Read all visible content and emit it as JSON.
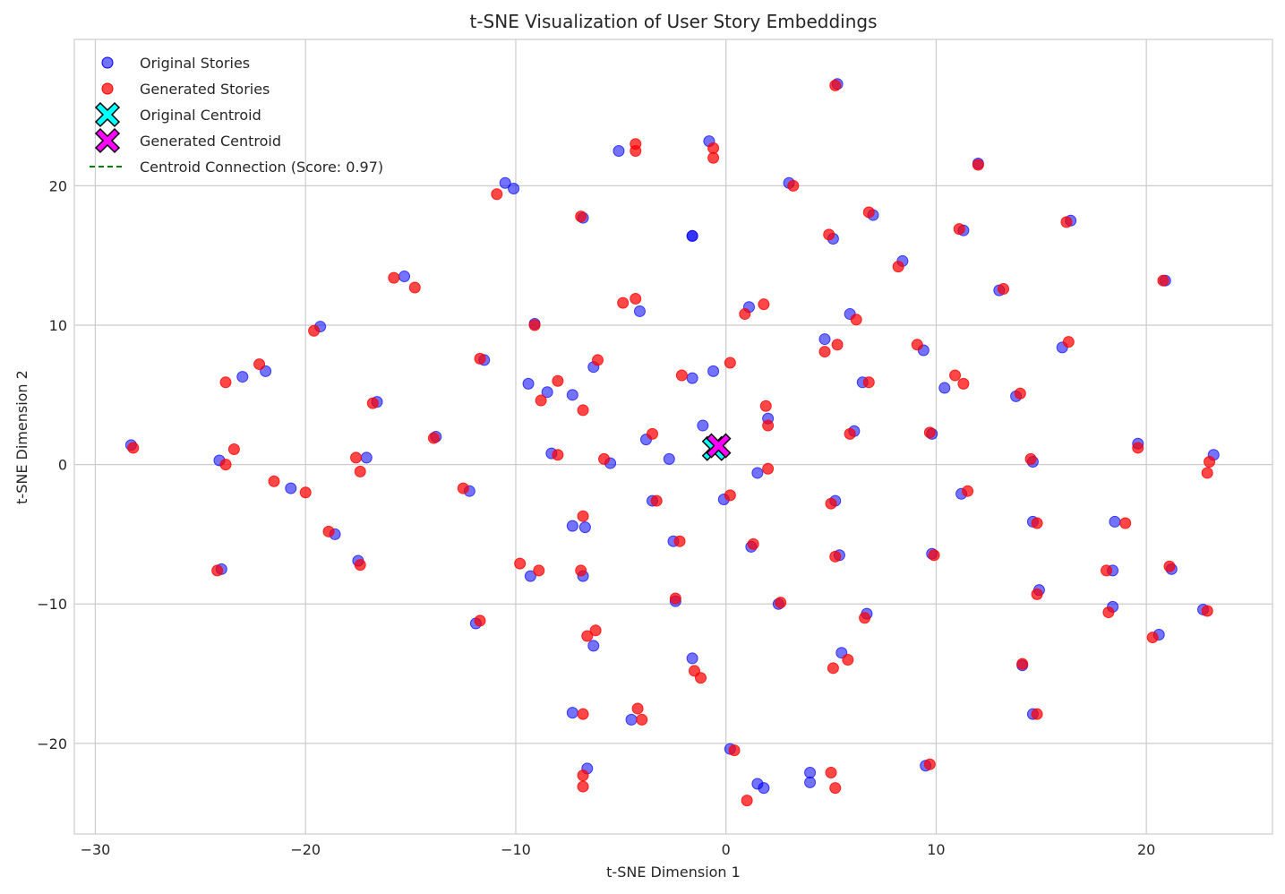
{
  "chart_data": {
    "type": "scatter",
    "title": "t-SNE Visualization of User Story Embeddings",
    "xlabel": "t-SNE Dimension 1",
    "ylabel": "t-SNE Dimension 2",
    "xlim": [
      -31,
      26
    ],
    "ylim": [
      -26.5,
      30.5
    ],
    "xticks": [
      -30,
      -20,
      -10,
      0,
      10,
      20
    ],
    "yticks": [
      -20,
      -10,
      0,
      10,
      20
    ],
    "xtick_labels": [
      "−30",
      "−20",
      "−10",
      "0",
      "10",
      "20"
    ],
    "ytick_labels": [
      "−20",
      "−10",
      "0",
      "10",
      "20"
    ],
    "grid": true,
    "legend_position": "upper-left",
    "colors": {
      "original": "#0000ff",
      "generated": "#ff0000",
      "original_centroid": "#00ffff",
      "generated_centroid": "#ff00ff",
      "connection": "#008000"
    },
    "series": [
      {
        "name": "Original Stories",
        "marker": "circle",
        "points": [
          [
            -28.3,
            1.4
          ],
          [
            -24.1,
            0.3
          ],
          [
            -24.0,
            -7.5
          ],
          [
            -23.0,
            6.3
          ],
          [
            -21.9,
            6.7
          ],
          [
            -20.7,
            -1.7
          ],
          [
            -19.3,
            9.9
          ],
          [
            -18.6,
            -5.0
          ],
          [
            -17.5,
            -6.9
          ],
          [
            -17.1,
            0.5
          ],
          [
            -16.6,
            4.5
          ],
          [
            -15.3,
            13.5
          ],
          [
            -13.8,
            2.0
          ],
          [
            -12.2,
            -1.9
          ],
          [
            -11.9,
            -11.4
          ],
          [
            -11.5,
            7.5
          ],
          [
            -10.5,
            20.2
          ],
          [
            -10.1,
            19.8
          ],
          [
            -9.4,
            5.8
          ],
          [
            -9.3,
            -8.0
          ],
          [
            -9.1,
            10.1
          ],
          [
            -8.5,
            5.2
          ],
          [
            -8.3,
            0.8
          ],
          [
            -7.3,
            5.0
          ],
          [
            -7.3,
            -4.4
          ],
          [
            -7.3,
            -17.8
          ],
          [
            -6.8,
            17.7
          ],
          [
            -6.8,
            -8.0
          ],
          [
            -6.7,
            -4.5
          ],
          [
            -6.6,
            -21.8
          ],
          [
            -6.3,
            7.0
          ],
          [
            -6.3,
            -13.0
          ],
          [
            -5.5,
            0.1
          ],
          [
            -5.1,
            22.5
          ],
          [
            -4.5,
            -18.3
          ],
          [
            -4.1,
            11.0
          ],
          [
            -3.8,
            1.8
          ],
          [
            -3.5,
            -2.6
          ],
          [
            -2.7,
            0.4
          ],
          [
            -2.5,
            -5.5
          ],
          [
            -2.4,
            -9.8
          ],
          [
            -1.6,
            16.4
          ],
          [
            -1.6,
            16.4
          ],
          [
            -1.6,
            6.2
          ],
          [
            -1.6,
            -13.9
          ],
          [
            -1.1,
            2.8
          ],
          [
            -0.8,
            23.2
          ],
          [
            -0.6,
            6.7
          ],
          [
            -0.1,
            -2.5
          ],
          [
            0.2,
            -20.4
          ],
          [
            1.1,
            11.3
          ],
          [
            1.2,
            -5.9
          ],
          [
            1.5,
            -0.6
          ],
          [
            1.5,
            -22.9
          ],
          [
            1.8,
            -23.2
          ],
          [
            2.0,
            3.3
          ],
          [
            2.5,
            -10.0
          ],
          [
            3.0,
            20.2
          ],
          [
            4.0,
            -22.1
          ],
          [
            4.0,
            -22.8
          ],
          [
            4.7,
            9.0
          ],
          [
            5.1,
            16.2
          ],
          [
            5.2,
            -2.6
          ],
          [
            5.3,
            27.3
          ],
          [
            5.4,
            -6.5
          ],
          [
            5.5,
            -13.5
          ],
          [
            5.9,
            10.8
          ],
          [
            6.1,
            2.4
          ],
          [
            6.5,
            5.9
          ],
          [
            6.7,
            -10.7
          ],
          [
            7.0,
            17.9
          ],
          [
            8.4,
            14.6
          ],
          [
            9.4,
            8.2
          ],
          [
            9.5,
            -21.6
          ],
          [
            9.8,
            2.2
          ],
          [
            9.8,
            -6.4
          ],
          [
            10.4,
            5.5
          ],
          [
            11.2,
            -2.1
          ],
          [
            11.3,
            16.8
          ],
          [
            12.0,
            21.6
          ],
          [
            13.0,
            12.5
          ],
          [
            13.8,
            4.9
          ],
          [
            14.1,
            -14.4
          ],
          [
            14.6,
            0.2
          ],
          [
            14.6,
            -4.1
          ],
          [
            14.6,
            -17.9
          ],
          [
            14.9,
            -9.0
          ],
          [
            16.0,
            8.4
          ],
          [
            16.4,
            17.5
          ],
          [
            18.4,
            -7.6
          ],
          [
            18.4,
            -10.2
          ],
          [
            18.5,
            -4.1
          ],
          [
            19.6,
            1.5
          ],
          [
            20.6,
            -12.2
          ],
          [
            20.9,
            13.2
          ],
          [
            21.2,
            -7.5
          ],
          [
            22.7,
            -10.4
          ],
          [
            23.2,
            0.7
          ]
        ]
      },
      {
        "name": "Generated Stories",
        "marker": "circle",
        "points": [
          [
            -28.2,
            1.2
          ],
          [
            -24.2,
            -7.6
          ],
          [
            -23.8,
            5.9
          ],
          [
            -23.8,
            0.0
          ],
          [
            -23.4,
            1.1
          ],
          [
            -22.2,
            7.2
          ],
          [
            -21.5,
            -1.2
          ],
          [
            -20.0,
            -2.0
          ],
          [
            -19.6,
            9.6
          ],
          [
            -18.9,
            -4.8
          ],
          [
            -17.6,
            0.5
          ],
          [
            -17.4,
            -7.2
          ],
          [
            -17.4,
            -0.5
          ],
          [
            -16.8,
            4.4
          ],
          [
            -15.8,
            13.4
          ],
          [
            -14.8,
            12.7
          ],
          [
            -13.9,
            1.9
          ],
          [
            -12.5,
            -1.7
          ],
          [
            -11.7,
            -11.2
          ],
          [
            -11.7,
            7.6
          ],
          [
            -10.9,
            19.4
          ],
          [
            -9.8,
            -7.1
          ],
          [
            -9.1,
            10.0
          ],
          [
            -8.9,
            -7.6
          ],
          [
            -8.8,
            4.6
          ],
          [
            -8.0,
            6.0
          ],
          [
            -8.0,
            0.7
          ],
          [
            -6.9,
            -7.6
          ],
          [
            -6.9,
            17.8
          ],
          [
            -6.8,
            -3.7
          ],
          [
            -6.8,
            3.9
          ],
          [
            -6.8,
            -17.9
          ],
          [
            -6.8,
            -22.3
          ],
          [
            -6.8,
            -23.1
          ],
          [
            -6.6,
            -12.3
          ],
          [
            -6.2,
            -11.9
          ],
          [
            -6.1,
            7.5
          ],
          [
            -5.8,
            0.4
          ],
          [
            -4.9,
            11.6
          ],
          [
            -4.3,
            23.0
          ],
          [
            -4.3,
            22.5
          ],
          [
            -4.3,
            11.9
          ],
          [
            -4.2,
            -17.5
          ],
          [
            -4.0,
            -18.3
          ],
          [
            -3.5,
            2.2
          ],
          [
            -3.3,
            -2.6
          ],
          [
            -2.4,
            -9.6
          ],
          [
            -2.2,
            -5.5
          ],
          [
            -2.1,
            6.4
          ],
          [
            -1.5,
            -14.8
          ],
          [
            -1.2,
            -15.3
          ],
          [
            -0.6,
            22.7
          ],
          [
            -0.6,
            22.0
          ],
          [
            0.2,
            7.3
          ],
          [
            0.2,
            -2.2
          ],
          [
            0.4,
            -20.5
          ],
          [
            0.9,
            10.8
          ],
          [
            1.0,
            -24.1
          ],
          [
            1.3,
            -5.7
          ],
          [
            1.8,
            11.5
          ],
          [
            1.9,
            4.2
          ],
          [
            2.0,
            2.8
          ],
          [
            2.0,
            -0.3
          ],
          [
            2.6,
            -9.9
          ],
          [
            3.2,
            20.0
          ],
          [
            4.7,
            8.1
          ],
          [
            4.9,
            16.5
          ],
          [
            5.0,
            -2.8
          ],
          [
            5.0,
            -22.1
          ],
          [
            5.1,
            -14.6
          ],
          [
            5.2,
            -23.2
          ],
          [
            5.2,
            -6.6
          ],
          [
            5.2,
            27.2
          ],
          [
            5.3,
            8.6
          ],
          [
            5.8,
            -14.0
          ],
          [
            5.9,
            2.2
          ],
          [
            6.2,
            10.4
          ],
          [
            6.6,
            -11.0
          ],
          [
            6.8,
            5.9
          ],
          [
            6.8,
            18.1
          ],
          [
            8.2,
            14.2
          ],
          [
            9.1,
            8.6
          ],
          [
            9.7,
            2.3
          ],
          [
            9.7,
            -21.5
          ],
          [
            9.9,
            -6.5
          ],
          [
            10.9,
            6.4
          ],
          [
            11.1,
            16.9
          ],
          [
            11.3,
            5.8
          ],
          [
            11.5,
            -1.9
          ],
          [
            12.0,
            21.5
          ],
          [
            13.2,
            12.6
          ],
          [
            14.0,
            5.1
          ],
          [
            14.1,
            -14.3
          ],
          [
            14.5,
            0.4
          ],
          [
            14.8,
            -4.2
          ],
          [
            14.8,
            -9.3
          ],
          [
            14.8,
            -17.9
          ],
          [
            16.2,
            17.4
          ],
          [
            16.3,
            8.8
          ],
          [
            18.1,
            -7.6
          ],
          [
            18.2,
            -10.6
          ],
          [
            19.0,
            -4.2
          ],
          [
            19.6,
            1.2
          ],
          [
            20.3,
            -12.4
          ],
          [
            20.8,
            13.2
          ],
          [
            21.1,
            -7.3
          ],
          [
            22.9,
            -0.6
          ],
          [
            23.0,
            0.2
          ],
          [
            22.9,
            -10.5
          ]
        ]
      },
      {
        "name": "Original Centroid",
        "marker": "x-filled",
        "points": [
          [
            -0.55,
            1.15
          ]
        ]
      },
      {
        "name": "Generated Centroid",
        "marker": "x-filled",
        "points": [
          [
            -0.35,
            1.35
          ]
        ]
      },
      {
        "name": "Centroid Connection (Score: 0.97)",
        "marker": "dashed-line",
        "points": [
          [
            -0.55,
            1.15
          ],
          [
            -0.35,
            1.35
          ]
        ]
      }
    ]
  }
}
